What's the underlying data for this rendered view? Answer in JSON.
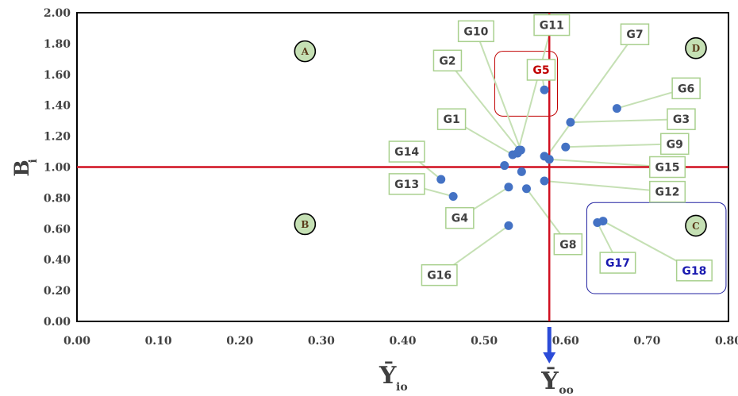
{
  "chart_data": {
    "type": "scatter",
    "title": "",
    "xlabel": "Ȳ",
    "xlabel_sub": "io",
    "ylabel": "B",
    "ylabel_sub": "i",
    "xlim": [
      0.0,
      0.8
    ],
    "ylim": [
      0.0,
      2.0
    ],
    "x_ticks": [
      "0.00",
      "0.10",
      "0.20",
      "0.30",
      "0.40",
      "0.50",
      "0.60",
      "0.70",
      "0.80"
    ],
    "y_ticks": [
      "0.00",
      "0.20",
      "0.40",
      "0.60",
      "0.80",
      "1.00",
      "1.20",
      "1.40",
      "1.60",
      "1.80",
      "2.00"
    ],
    "grid": false,
    "reference_lines": {
      "vertical_x": 0.58,
      "horizontal_y": 1.0,
      "vertical_label": "Ȳ",
      "vertical_label_sub": "oo"
    },
    "quadrants": [
      {
        "label": "A",
        "x": 0.28,
        "y": 1.75
      },
      {
        "label": "D",
        "x": 0.76,
        "y": 1.77
      },
      {
        "label": "B",
        "x": 0.28,
        "y": 0.63
      },
      {
        "label": "C",
        "x": 0.76,
        "y": 0.62
      }
    ],
    "points": [
      {
        "name": "G1",
        "x": 0.535,
        "y": 1.08
      },
      {
        "name": "G2",
        "x": 0.543,
        "y": 1.11
      },
      {
        "name": "G3",
        "x": 0.606,
        "y": 1.29
      },
      {
        "name": "G4",
        "x": 0.53,
        "y": 0.87
      },
      {
        "name": "G5",
        "x": 0.574,
        "y": 1.5
      },
      {
        "name": "G6",
        "x": 0.663,
        "y": 1.38
      },
      {
        "name": "G7",
        "x": 0.574,
        "y": 1.07
      },
      {
        "name": "G8",
        "x": 0.552,
        "y": 0.86
      },
      {
        "name": "G9",
        "x": 0.6,
        "y": 1.13
      },
      {
        "name": "G10",
        "x": 0.545,
        "y": 1.11
      },
      {
        "name": "G11",
        "x": 0.541,
        "y": 1.09
      },
      {
        "name": "G12",
        "x": 0.574,
        "y": 0.91
      },
      {
        "name": "G13",
        "x": 0.462,
        "y": 0.81
      },
      {
        "name": "G14",
        "x": 0.447,
        "y": 0.92
      },
      {
        "name": "G15",
        "x": 0.58,
        "y": 1.05
      },
      {
        "name": "G16",
        "x": 0.53,
        "y": 0.62
      },
      {
        "name": "G17",
        "x": 0.639,
        "y": 0.64
      },
      {
        "name": "G18",
        "x": 0.646,
        "y": 0.65
      },
      {
        "name": "",
        "x": 0.525,
        "y": 1.01
      },
      {
        "name": "",
        "x": 0.546,
        "y": 0.97
      }
    ],
    "labels": [
      {
        "text": "G1",
        "lx": 0.46,
        "ly": 1.31,
        "tx": 0.535,
        "ty": 1.08,
        "color": "#404040"
      },
      {
        "text": "G2",
        "lx": 0.455,
        "ly": 1.69,
        "tx": 0.543,
        "ty": 1.11,
        "color": "#404040"
      },
      {
        "text": "G10",
        "lx": 0.49,
        "ly": 1.88,
        "tx": 0.545,
        "ty": 1.11,
        "color": "#404040"
      },
      {
        "text": "G11",
        "lx": 0.583,
        "ly": 1.92,
        "tx": 0.541,
        "ty": 1.09,
        "color": "#404040"
      },
      {
        "text": "G5",
        "lx": 0.57,
        "ly": 1.63,
        "tx": 0.574,
        "ty": 1.5,
        "color": "#c00000"
      },
      {
        "text": "G7",
        "lx": 0.685,
        "ly": 1.86,
        "tx": 0.577,
        "ty": 1.07,
        "color": "#404040"
      },
      {
        "text": "G6",
        "lx": 0.748,
        "ly": 1.51,
        "tx": 0.663,
        "ty": 1.38,
        "color": "#404040"
      },
      {
        "text": "G3",
        "lx": 0.742,
        "ly": 1.31,
        "tx": 0.606,
        "ty": 1.29,
        "color": "#404040"
      },
      {
        "text": "G9",
        "lx": 0.734,
        "ly": 1.15,
        "tx": 0.6,
        "ty": 1.13,
        "color": "#404040"
      },
      {
        "text": "G15",
        "lx": 0.725,
        "ly": 1.0,
        "tx": 0.58,
        "ty": 1.05,
        "color": "#404040"
      },
      {
        "text": "G12",
        "lx": 0.725,
        "ly": 0.84,
        "tx": 0.574,
        "ty": 0.91,
        "color": "#404040"
      },
      {
        "text": "G8",
        "lx": 0.603,
        "ly": 0.5,
        "tx": 0.552,
        "ty": 0.86,
        "color": "#404040"
      },
      {
        "text": "G4",
        "lx": 0.47,
        "ly": 0.67,
        "tx": 0.53,
        "ty": 0.87,
        "color": "#404040"
      },
      {
        "text": "G14",
        "lx": 0.405,
        "ly": 1.1,
        "tx": 0.447,
        "ty": 0.92,
        "color": "#404040"
      },
      {
        "text": "G13",
        "lx": 0.405,
        "ly": 0.89,
        "tx": 0.462,
        "ty": 0.81,
        "color": "#404040"
      },
      {
        "text": "G16",
        "lx": 0.445,
        "ly": 0.3,
        "tx": 0.53,
        "ty": 0.62,
        "color": "#404040"
      },
      {
        "text": "G17",
        "lx": 0.664,
        "ly": 0.38,
        "tx": 0.639,
        "ty": 0.64,
        "color": "#1a1ab0"
      },
      {
        "text": "G18",
        "lx": 0.758,
        "ly": 0.33,
        "tx": 0.646,
        "ty": 0.65,
        "color": "#1a1ab0"
      }
    ],
    "highlight_boxes": [
      {
        "color": "#c00000",
        "x0": 0.513,
        "y0": 1.33,
        "x1": 0.59,
        "y1": 1.75
      },
      {
        "color": "#2020a0",
        "x0": 0.626,
        "y0": 0.18,
        "x1": 0.797,
        "y1": 0.77
      }
    ],
    "colors": {
      "point": "#4472c4",
      "reference_line": "#d01020",
      "leader": "#c5e0b4",
      "label_border": "#a9d08e",
      "quadrant_fill": "#c5e0b4",
      "arrow": "#2b4bd8"
    }
  }
}
